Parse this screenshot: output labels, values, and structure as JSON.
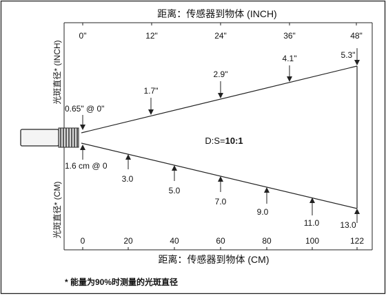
{
  "inch_axis": {
    "title": "距离：传感器到物体 (INCH)",
    "ticks": [
      "0\"",
      "12\"",
      "24\"",
      "36\"",
      "48\""
    ]
  },
  "cm_axis": {
    "title": "距离：传感器到物体 (CM)",
    "ticks": [
      "0",
      "20",
      "40",
      "60",
      "80",
      "100",
      "122"
    ]
  },
  "side_labels": {
    "inch": "光斑直径* (INCH)",
    "cm": "光斑直径* (CM)"
  },
  "spot_inch": {
    "at_zero": "0.65\" @ 0\"",
    "values": [
      "1.7\"",
      "2.9\"",
      "4.1\"",
      "5.3\""
    ]
  },
  "spot_cm": {
    "at_zero": "1.6 cm @ 0",
    "values": [
      "3.0",
      "5.0",
      "7.0",
      "9.0",
      "11.0",
      "13.0"
    ]
  },
  "ratio": {
    "prefix": "D:S=",
    "value": "10:1"
  },
  "footnote": "* 能量为90%时测量的光斑直径"
}
